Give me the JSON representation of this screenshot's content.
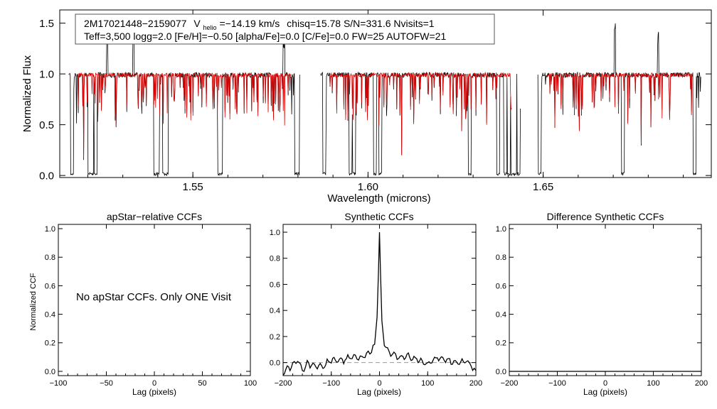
{
  "colors": {
    "observed": "#000000",
    "model": "#dd0000",
    "zero_line": "#999999"
  },
  "chart_data": [
    {
      "id": "spectrum",
      "type": "line",
      "title": "",
      "xlabel": "Wavelength (microns)",
      "ylabel": "Normalized Flux",
      "xlim": [
        1.512,
        1.698
      ],
      "ylim": [
        -0.02,
        1.63
      ],
      "xticks": [
        1.55,
        1.6,
        1.65
      ],
      "xtick_labels": [
        "1.55",
        "1.60",
        "1.65"
      ],
      "yticks": [
        0.0,
        0.5,
        1.0,
        1.5
      ],
      "ytick_labels": [
        "0.0",
        "0.5",
        "1.0",
        "1.5"
      ],
      "annotation": {
        "star_id": "2M17021448−2159077",
        "vhelio_label": "V",
        "vhelio_sub": "helio",
        "vhelio_value": "=−14.19 km/s",
        "stats": "chisq=15.78  S/N=331.6  Nvisits=1",
        "params": "Teff=3,500 logg=2.0 [Fe/H]=−0.50 [alpha/Fe]=0.0 [C/Fe]=0.0 FW=25 AUTOFW=21"
      },
      "chips": [
        [
          1.5145,
          1.5805
        ],
        [
          1.5865,
          1.6435
        ],
        [
          1.6485,
          1.695
        ]
      ],
      "series": [
        {
          "name": "observed",
          "continuum": 0.99
        },
        {
          "name": "model",
          "continuum": 0.99
        }
      ],
      "deep_lines": [
        1.5155,
        1.5205,
        1.5212,
        1.5222,
        1.5392,
        1.54,
        1.5418,
        1.5425,
        1.5575,
        1.558,
        1.5795,
        1.58,
        1.5875,
        1.595,
        1.596,
        1.602,
        1.6035,
        1.629,
        1.6372,
        1.6392,
        1.6402,
        1.6412,
        1.642,
        1.643,
        1.649,
        1.6728,
        1.6932
      ],
      "spikes": [
        1.5255,
        1.533,
        1.576,
        1.6705,
        1.6828
      ]
    },
    {
      "id": "apstar-ccf",
      "type": "line",
      "title": "apStar−relative CCFs",
      "xlabel": "Lag (pixels)",
      "ylabel": "Normalized CCF",
      "xlim": [
        -100,
        100
      ],
      "ylim": [
        -0.03,
        1.03
      ],
      "xticks": [
        -100,
        -50,
        0,
        50,
        100
      ],
      "xtick_labels": [
        "−100",
        "−50",
        "0",
        "50",
        "100"
      ],
      "yticks": [
        0.0,
        0.2,
        0.4,
        0.6,
        0.8,
        1.0
      ],
      "ytick_labels": [
        "0.0",
        "0.2",
        "0.4",
        "0.6",
        "0.8",
        "1.0"
      ],
      "message": "No apStar CCFs.  Only ONE Visit",
      "series": []
    },
    {
      "id": "synthetic-ccf",
      "type": "line",
      "title": "Synthetic CCFs",
      "xlabel": "Lag (pixels)",
      "ylabel": "",
      "xlim": [
        -200,
        200
      ],
      "ylim": [
        -0.1,
        1.06
      ],
      "xticks": [
        -200,
        -100,
        0,
        100,
        200
      ],
      "xtick_labels": [
        "−200",
        "−100",
        "0",
        "100",
        "200"
      ],
      "yticks": [
        0.0,
        0.2,
        0.4,
        0.6,
        0.8,
        1.0
      ],
      "ytick_labels": [
        "0.0",
        "0.2",
        "0.4",
        "0.6",
        "0.8",
        "1.0"
      ],
      "zero_line": 0.0,
      "series": [
        {
          "name": "ccf",
          "x": [
            -200,
            -180,
            -170,
            -160,
            -150,
            -120,
            -100,
            -80,
            -60,
            -50,
            -40,
            -30,
            -20,
            -10,
            -5,
            -2,
            0,
            2,
            5,
            10,
            20,
            30,
            40,
            60,
            80,
            100,
            120,
            140,
            160,
            180,
            190,
            200
          ],
          "y": [
            -0.07,
            -0.02,
            0.03,
            -0.06,
            -0.01,
            -0.03,
            0.02,
            0.01,
            0.04,
            0.05,
            0.03,
            0.06,
            0.08,
            0.14,
            0.35,
            0.7,
            1.0,
            0.7,
            0.32,
            0.13,
            0.08,
            0.06,
            0.04,
            0.05,
            0.02,
            -0.01,
            0.04,
            0.02,
            0.0,
            0.01,
            -0.02,
            -0.06
          ]
        }
      ]
    },
    {
      "id": "difference-ccf",
      "type": "line",
      "title": "Difference Synthetic CCFs",
      "xlabel": "Lag (pixels)",
      "ylabel": "",
      "xlim": [
        -200,
        200
      ],
      "ylim": [
        -0.03,
        1.03
      ],
      "xticks": [
        -200,
        -100,
        0,
        100,
        200
      ],
      "xtick_labels": [
        "−200",
        "−100",
        "0",
        "100",
        "200"
      ],
      "yticks": [
        0.0,
        0.2,
        0.4,
        0.6,
        0.8,
        1.0
      ],
      "ytick_labels": [
        "0.0",
        "0.2",
        "0.4",
        "0.6",
        "0.8",
        "1.0"
      ],
      "series": [
        {
          "name": "diff",
          "x": [
            -200,
            200
          ],
          "y": [
            0.0,
            0.0
          ]
        }
      ]
    }
  ]
}
